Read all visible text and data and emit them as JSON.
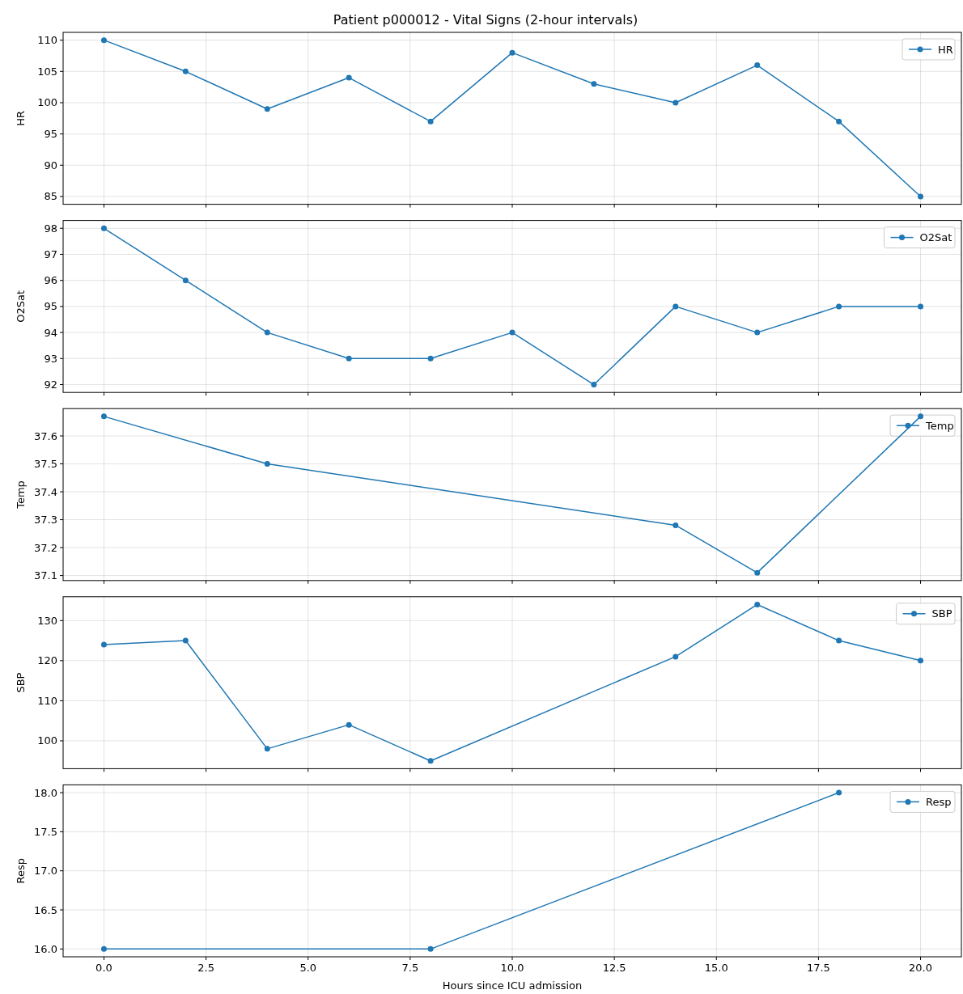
{
  "chart_data": [
    {
      "type": "line",
      "title": "Patient p000012 - Vital Signs (2-hour intervals)",
      "ylabel": "HR",
      "x": [
        0,
        2,
        4,
        6,
        8,
        10,
        12,
        14,
        16,
        18,
        20
      ],
      "series": [
        {
          "name": "HR",
          "color": "#1f77b4",
          "values": [
            110,
            105,
            99,
            104,
            97,
            108,
            103,
            100,
            106,
            97,
            85
          ]
        }
      ],
      "xlim": [
        -1,
        21
      ],
      "xticks": [
        {
          "value": 0,
          "label": null
        },
        {
          "value": 2.5,
          "label": null
        },
        {
          "value": 5,
          "label": null
        },
        {
          "value": 7.5,
          "label": null
        },
        {
          "value": 10,
          "label": null
        },
        {
          "value": 12.5,
          "label": null
        },
        {
          "value": 15,
          "label": null
        },
        {
          "value": 17.5,
          "label": null
        },
        {
          "value": 20,
          "label": null
        }
      ],
      "ylim": [
        83.75,
        111.25
      ],
      "yticks": [
        85,
        90,
        95,
        100,
        105,
        110
      ],
      "grid": true,
      "legend": "top right",
      "marker": "circle",
      "line_style": "solid",
      "tick_labels": "y"
    },
    {
      "type": "line",
      "ylabel": "O2Sat",
      "x": [
        0,
        2,
        4,
        6,
        8,
        10,
        12,
        14,
        16,
        18,
        20
      ],
      "series": [
        {
          "name": "O2Sat",
          "color": "#1f77b4",
          "values": [
            98,
            96,
            94,
            93,
            93,
            94,
            92,
            95,
            94,
            95,
            95
          ]
        }
      ],
      "xlim": [
        -1,
        21
      ],
      "xticks": [
        {
          "value": 0,
          "label": null
        },
        {
          "value": 2.5,
          "label": null
        },
        {
          "value": 5,
          "label": null
        },
        {
          "value": 7.5,
          "label": null
        },
        {
          "value": 10,
          "label": null
        },
        {
          "value": 12.5,
          "label": null
        },
        {
          "value": 15,
          "label": null
        },
        {
          "value": 17.5,
          "label": null
        },
        {
          "value": 20,
          "label": null
        }
      ],
      "ylim": [
        91.7,
        98.3
      ],
      "yticks": [
        92,
        93,
        94,
        95,
        96,
        97,
        98
      ],
      "grid": true,
      "legend": "top right",
      "marker": "circle",
      "line_style": "solid",
      "tick_labels": "y"
    },
    {
      "type": "line",
      "ylabel": "Temp",
      "x": [
        0,
        4,
        14,
        16,
        20
      ],
      "series": [
        {
          "name": "Temp",
          "color": "#1f77b4",
          "values": [
            37.67,
            37.5,
            37.28,
            37.11,
            37.67
          ]
        }
      ],
      "xlim": [
        -1,
        21
      ],
      "xticks": [
        {
          "value": 0,
          "label": null
        },
        {
          "value": 2.5,
          "label": null
        },
        {
          "value": 5,
          "label": null
        },
        {
          "value": 7.5,
          "label": null
        },
        {
          "value": 10,
          "label": null
        },
        {
          "value": 12.5,
          "label": null
        },
        {
          "value": 15,
          "label": null
        },
        {
          "value": 17.5,
          "label": null
        },
        {
          "value": 20,
          "label": null
        }
      ],
      "ylim": [
        37.082,
        37.698
      ],
      "yticks": [
        37.1,
        37.2,
        37.3,
        37.4,
        37.5,
        37.6
      ],
      "grid": true,
      "legend": "top right",
      "marker": "circle",
      "line_style": "solid",
      "tick_labels": "y"
    },
    {
      "type": "line",
      "ylabel": "SBP",
      "x": [
        0,
        2,
        4,
        6,
        8,
        14,
        16,
        18,
        20
      ],
      "series": [
        {
          "name": "SBP",
          "color": "#1f77b4",
          "values": [
            124,
            125,
            98,
            104,
            95,
            121,
            134,
            125,
            120
          ]
        }
      ],
      "xlim": [
        -1,
        21
      ],
      "xticks": [
        {
          "value": 0,
          "label": null
        },
        {
          "value": 2.5,
          "label": null
        },
        {
          "value": 5,
          "label": null
        },
        {
          "value": 7.5,
          "label": null
        },
        {
          "value": 10,
          "label": null
        },
        {
          "value": 12.5,
          "label": null
        },
        {
          "value": 15,
          "label": null
        },
        {
          "value": 17.5,
          "label": null
        },
        {
          "value": 20,
          "label": null
        }
      ],
      "ylim": [
        93.05,
        135.95
      ],
      "yticks": [
        100,
        110,
        120,
        130
      ],
      "grid": true,
      "legend": "top right",
      "marker": "circle",
      "line_style": "solid",
      "tick_labels": "y"
    },
    {
      "type": "line",
      "ylabel": "Resp",
      "xlabel": "Hours since ICU admission",
      "x": [
        0,
        8,
        18
      ],
      "series": [
        {
          "name": "Resp",
          "color": "#1f77b4",
          "values": [
            16,
            16,
            18
          ]
        }
      ],
      "xlim": [
        -1,
        21
      ],
      "xticks": [
        {
          "value": 0,
          "label": "0.0"
        },
        {
          "value": 2.5,
          "label": "2.5"
        },
        {
          "value": 5,
          "label": "5.0"
        },
        {
          "value": 7.5,
          "label": "7.5"
        },
        {
          "value": 10,
          "label": "10.0"
        },
        {
          "value": 12.5,
          "label": "12.5"
        },
        {
          "value": 15,
          "label": "15.0"
        },
        {
          "value": 17.5,
          "label": "17.5"
        },
        {
          "value": 20,
          "label": "20.0"
        }
      ],
      "ylim": [
        15.9,
        18.1
      ],
      "yticks": [
        {
          "value": 16,
          "label": "16.0"
        },
        {
          "value": 16.5,
          "label": "16.5"
        },
        {
          "value": 17,
          "label": "17.0"
        },
        {
          "value": 17.5,
          "label": "17.5"
        },
        {
          "value": 18,
          "label": "18.0"
        }
      ],
      "grid": true,
      "legend": "top right",
      "marker": "circle",
      "line_style": "solid"
    }
  ]
}
